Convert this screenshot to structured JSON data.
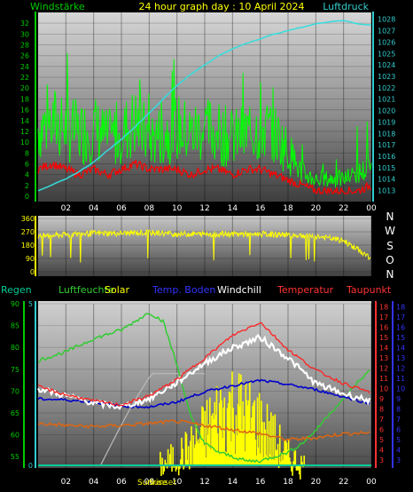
{
  "header": {
    "title": "24 hour graph day : 10 April 2024",
    "left_label": "Windstärke",
    "right_label": "Luftdruck"
  },
  "direction_labels": [
    "N",
    "W",
    "S",
    "O",
    "N"
  ],
  "legend": {
    "regen": "Regen",
    "luftfeuchte": "Luftfeuchte",
    "solar": "Solar",
    "temp_boden": "Temp. Boden",
    "windchill": "Windchill",
    "temperatur": "Temperatur",
    "taupunkt": "Taupunkt"
  },
  "sun_labels": {
    "sunrise": "Sunrise",
    "sunset": "Sunset"
  },
  "colors": {
    "wind_gust": "#00ff00",
    "wind_avg": "#ff0000",
    "pressure": "#33dddd",
    "direction": "#ffff00",
    "humidity": "#33cc33",
    "solar": "#ffff00",
    "temp_boden": "#0000cc",
    "windchill": "#ffffff",
    "temperatur": "#ff2222",
    "taupunkt": "#dd6611",
    "regen": "#00cc99",
    "axis_green": "#00cc00",
    "axis_cyan": "#33cccc",
    "axis_yellow": "#ffff00",
    "axis_red": "#ff3333",
    "axis_blue": "#3333ff"
  },
  "chart_data": [
    {
      "type": "line",
      "title": "24 hour graph day : 10 April 2024",
      "x_tick_labels": [
        "02",
        "04",
        "06",
        "08",
        "10",
        "12",
        "14",
        "16",
        "18",
        "20",
        "22",
        "00"
      ],
      "xlim": [
        0,
        24
      ],
      "ylim_left": [
        0,
        34
      ],
      "ylim_right": [
        1012.5,
        1028.6
      ],
      "left_ticks": [
        0,
        2,
        4,
        6,
        8,
        10,
        12,
        14,
        16,
        18,
        20,
        22,
        24,
        26,
        28,
        30,
        32
      ],
      "right_ticks": [
        1013,
        1014,
        1015,
        1016,
        1017,
        1018,
        1019,
        1020,
        1021,
        1022,
        1023,
        1024,
        1025,
        1026,
        1027,
        1028
      ],
      "series": [
        {
          "name": "Windstärke",
          "axis": "left",
          "x": [
            0,
            1,
            2,
            3,
            4,
            5,
            6,
            7,
            8,
            9,
            10,
            11,
            12,
            13,
            14,
            15,
            16,
            17,
            18,
            19,
            20,
            21,
            22,
            23,
            24
          ],
          "values": [
            12,
            13,
            12,
            11,
            12,
            10,
            11,
            13,
            10,
            11,
            12,
            11,
            12,
            11,
            10,
            11,
            12,
            11,
            8,
            4,
            3,
            3,
            3,
            4,
            5
          ]
        },
        {
          "axis": "left",
          "x": [
            0,
            1,
            2,
            3,
            4,
            5,
            6,
            7,
            8,
            9,
            10,
            11,
            12,
            13,
            14,
            15,
            16,
            17,
            18,
            19,
            20,
            21,
            22,
            23,
            24
          ],
          "values": [
            5,
            6,
            5,
            4,
            5,
            4,
            5,
            6,
            5,
            5,
            5,
            4,
            5,
            5,
            4,
            5,
            5,
            4,
            3,
            2,
            1,
            1,
            1,
            1,
            2
          ]
        },
        {
          "name": "Luftdruck",
          "axis": "right",
          "x": [
            0,
            1,
            2,
            3,
            4,
            5,
            6,
            7,
            8,
            9,
            10,
            11,
            12,
            13,
            14,
            15,
            16,
            17,
            18,
            19,
            20,
            21,
            22,
            23,
            24
          ],
          "values": [
            1013.0,
            1013.5,
            1014.0,
            1014.7,
            1015.5,
            1016.5,
            1017.5,
            1018.6,
            1019.8,
            1021.0,
            1022.2,
            1023.2,
            1024.0,
            1024.8,
            1025.4,
            1025.9,
            1026.3,
            1026.7,
            1027.0,
            1027.3,
            1027.6,
            1027.8,
            1027.9,
            1027.6,
            1027.5
          ]
        }
      ]
    },
    {
      "type": "line",
      "x_tick_labels": [
        "02",
        "04",
        "06",
        "08",
        "10",
        "12",
        "14",
        "16",
        "18",
        "20",
        "22",
        "00"
      ],
      "xlim": [
        0,
        24
      ],
      "ylim": [
        0,
        360
      ],
      "y_ticks": [
        0,
        90,
        180,
        270,
        360
      ],
      "series": [
        {
          "x": [
            0,
            2,
            4,
            6,
            8,
            10,
            12,
            14,
            16,
            18,
            20,
            22,
            24
          ],
          "values": [
            240,
            250,
            260,
            260,
            265,
            255,
            255,
            255,
            255,
            250,
            240,
            210,
            90
          ]
        }
      ]
    },
    {
      "type": "line",
      "x_tick_labels": [
        "02",
        "04",
        "06",
        "08",
        "10",
        "12",
        "14",
        "16",
        "18",
        "20",
        "22",
        "00"
      ],
      "xlim": [
        0,
        24
      ],
      "axes": {
        "regen": {
          "ylim": [
            0,
            5
          ],
          "ticks": [
            0,
            5
          ]
        },
        "luftfeuchte": {
          "ylim": [
            53,
            90
          ],
          "ticks": [
            55,
            60,
            65,
            70,
            75,
            80,
            85,
            90
          ]
        },
        "temperatur": {
          "ylim": [
            2.5,
            18.3
          ],
          "ticks": [
            3,
            4,
            5,
            6,
            7,
            8,
            9,
            10,
            11,
            12,
            13,
            14,
            15,
            16,
            17,
            18
          ]
        }
      },
      "series": [
        {
          "name": "Luftfeuchte",
          "axis": "luftfeuchte",
          "x": [
            0,
            2,
            4,
            6,
            7,
            8,
            9,
            10,
            11,
            12,
            13,
            14,
            15,
            16,
            17,
            18,
            19,
            20,
            21,
            22,
            23,
            24
          ],
          "values": [
            77,
            79,
            82,
            84,
            86,
            88,
            86,
            76,
            64,
            58,
            56,
            55,
            54,
            54,
            55,
            56,
            58,
            61,
            65,
            68,
            72,
            75
          ]
        },
        {
          "name": "Solar",
          "axis": "temperatur",
          "x": [
            9,
            10,
            11,
            12,
            13,
            14,
            15,
            16,
            17,
            18,
            19
          ],
          "values": [
            3,
            4,
            5,
            7,
            9,
            10,
            9,
            8,
            6,
            4,
            3
          ]
        },
        {
          "name": "Temp. Boden",
          "axis": "temperatur",
          "x": [
            0,
            2,
            4,
            6,
            8,
            10,
            12,
            14,
            16,
            18,
            20,
            22,
            24
          ],
          "values": [
            9.0,
            8.9,
            8.7,
            8.3,
            8.2,
            8.7,
            9.7,
            10.3,
            10.8,
            10.4,
            9.9,
            9.2,
            8.5
          ]
        },
        {
          "name": "Windchill",
          "axis": "temperatur",
          "x": [
            0,
            2,
            4,
            6,
            8,
            10,
            12,
            14,
            16,
            18,
            20,
            22,
            24
          ],
          "values": [
            10.0,
            9.3,
            8.6,
            8.2,
            9.0,
            10.6,
            12.5,
            14.0,
            15.0,
            13.0,
            10.5,
            9.5,
            8.8
          ]
        },
        {
          "name": "Temperatur",
          "axis": "temperatur",
          "x": [
            0,
            2,
            4,
            6,
            8,
            10,
            12,
            14,
            16,
            18,
            20,
            22,
            24
          ],
          "values": [
            10.2,
            9.4,
            8.8,
            8.4,
            9.3,
            10.9,
            13.0,
            15.2,
            16.5,
            13.8,
            11.8,
            10.5,
            9.6
          ]
        },
        {
          "name": "Taupunkt",
          "axis": "temperatur",
          "x": [
            0,
            2,
            4,
            6,
            8,
            10,
            12,
            14,
            16,
            18,
            20,
            22,
            24
          ],
          "values": [
            6.6,
            6.4,
            6.3,
            6.4,
            6.6,
            6.8,
            6.4,
            6.0,
            5.6,
            5.0,
            5.2,
            5.6,
            5.7
          ]
        },
        {
          "name": "Regen",
          "axis": "regen",
          "x": [
            0,
            24
          ],
          "values": [
            0,
            0
          ]
        }
      ]
    }
  ]
}
